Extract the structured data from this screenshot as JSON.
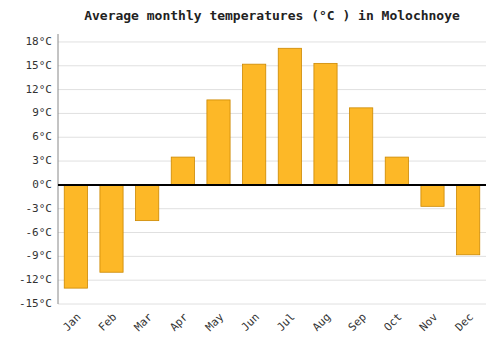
{
  "chart_data": {
    "type": "bar",
    "title": "Average monthly temperatures (°C ) in Molochnoye",
    "categories": [
      "Jan",
      "Feb",
      "Mar",
      "Apr",
      "May",
      "Jun",
      "Jul",
      "Aug",
      "Sep",
      "Oct",
      "Nov",
      "Dec"
    ],
    "values": [
      -13,
      -11,
      -4.5,
      3.5,
      10.7,
      15.2,
      17.2,
      15.3,
      9.7,
      3.5,
      -2.7,
      -8.8
    ],
    "color": "#FDB827",
    "ylim": [
      -15,
      19
    ],
    "yticks": [
      {
        "value": -15,
        "label": "-15°C"
      },
      {
        "value": -12,
        "label": "-12°C"
      },
      {
        "value": -9,
        "label": "-9°C"
      },
      {
        "value": -6,
        "label": "-6°C"
      },
      {
        "value": -3,
        "label": "-3°C"
      },
      {
        "value": 0,
        "label": "0°C"
      },
      {
        "value": 3,
        "label": "3°C"
      },
      {
        "value": 6,
        "label": "6°C"
      },
      {
        "value": 9,
        "label": "9°C"
      },
      {
        "value": 12,
        "label": "12°C"
      },
      {
        "value": 15,
        "label": "15°C"
      },
      {
        "value": 18,
        "label": "18°C"
      }
    ],
    "grid": true
  }
}
